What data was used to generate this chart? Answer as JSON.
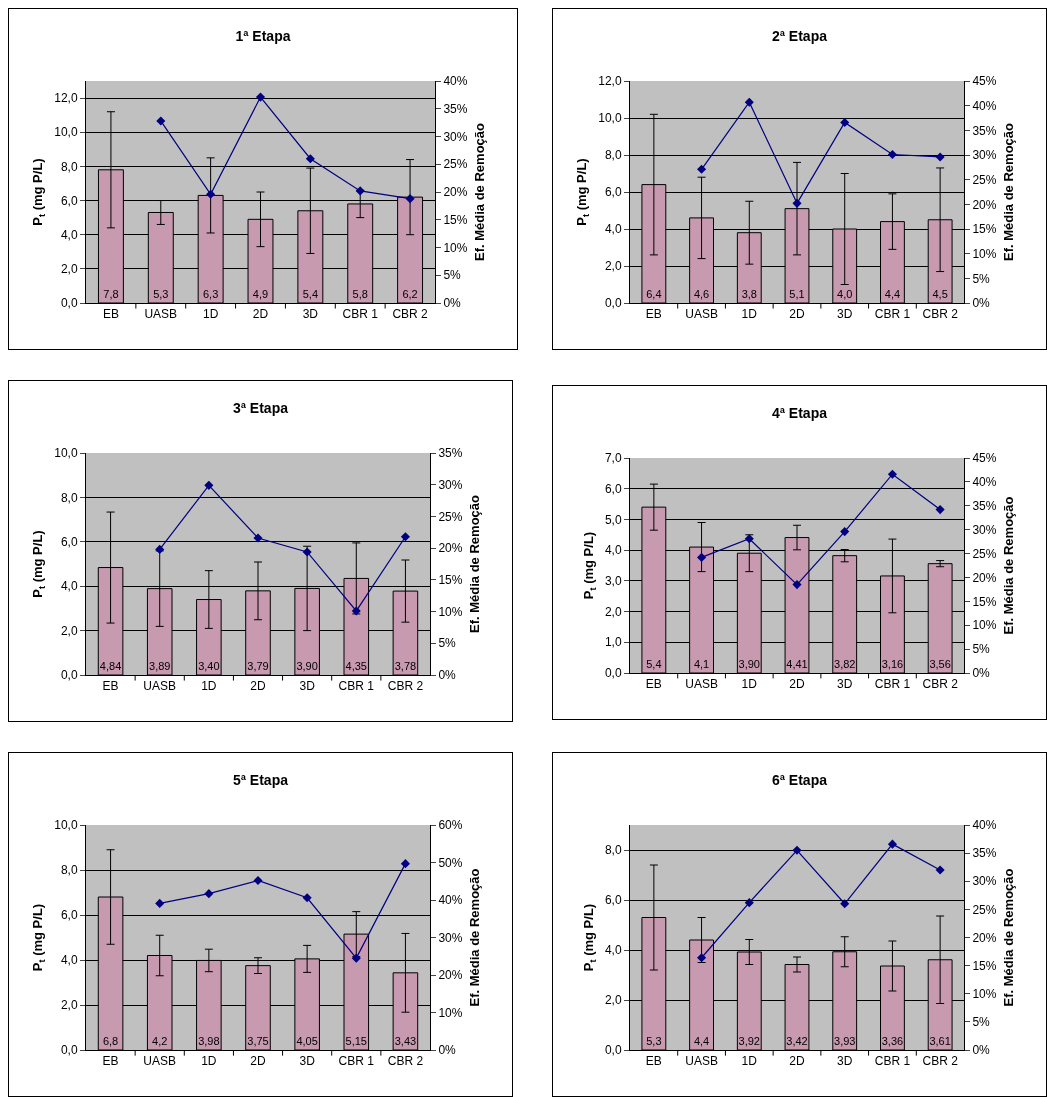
{
  "chart_data": [
    {
      "type": "bar",
      "title": "1ª Etapa",
      "ylabel": "P$_{t}$ (mg P/L)",
      "y2label": "Ef. Média de Remoção",
      "categories": [
        "EB",
        "UASB",
        "1D",
        "2D",
        "3D",
        "CBR 1",
        "CBR 2"
      ],
      "grid": "y",
      "marker": "diamond",
      "line_style": "solid",
      "ylim": [
        0,
        13
      ],
      "yticks": [
        {
          "value": 0,
          "label": "0,0"
        },
        {
          "value": 2,
          "label": "2,0"
        },
        {
          "value": 4,
          "label": "4,0"
        },
        {
          "value": 6,
          "label": "6,0"
        },
        {
          "value": 8,
          "label": "8,0"
        },
        {
          "value": 10,
          "label": "10,0"
        },
        {
          "value": 12,
          "label": "12,0"
        }
      ],
      "y2lim": [
        0,
        40
      ],
      "y2ticks": [
        {
          "value": 0,
          "label": "0%"
        },
        {
          "value": 5,
          "label": "5%"
        },
        {
          "value": 10,
          "label": "10%"
        },
        {
          "value": 15,
          "label": "15%"
        },
        {
          "value": 20,
          "label": "20%"
        },
        {
          "value": 25,
          "label": "25%"
        },
        {
          "value": 30,
          "label": "30%"
        },
        {
          "value": 35,
          "label": "35%"
        },
        {
          "value": 40,
          "label": "40%"
        }
      ],
      "series": [
        {
          "color": "#c89ab0",
          "values": [
            7.8,
            5.3,
            6.3,
            4.9,
            5.4,
            5.8,
            6.2
          ],
          "errors": [
            3.4,
            0.7,
            2.2,
            1.6,
            2.5,
            0.8,
            2.2
          ],
          "value_labels": [
            "7,8",
            "5,3",
            "6,3",
            "4,9",
            "5,4",
            "5,8",
            "6,2"
          ]
        },
        {
          "type": "line",
          "axis": "y2",
          "color": "#000080",
          "values": [
            null,
            32.8,
            19.6,
            37.1,
            26.0,
            20.2,
            18.8
          ]
        }
      ]
    },
    {
      "type": "bar",
      "title": "2ª Etapa",
      "ylabel": "P$_{t}$ (mg P/L)",
      "y2label": "Ef. Média de Remoção",
      "categories": [
        "EB",
        "UASB",
        "1D",
        "2D",
        "3D",
        "CBR 1",
        "CBR 2"
      ],
      "grid": "y",
      "marker": "diamond",
      "line_style": "solid",
      "ylim": [
        0,
        12
      ],
      "yticks": [
        {
          "value": 0,
          "label": "0,0"
        },
        {
          "value": 2,
          "label": "2,0"
        },
        {
          "value": 4,
          "label": "4,0"
        },
        {
          "value": 6,
          "label": "6,0"
        },
        {
          "value": 8,
          "label": "8,0"
        },
        {
          "value": 10,
          "label": "10,0"
        },
        {
          "value": 12,
          "label": "12,0"
        }
      ],
      "y2lim": [
        0,
        45
      ],
      "y2ticks": [
        {
          "value": 0,
          "label": "0%"
        },
        {
          "value": 5,
          "label": "5%"
        },
        {
          "value": 10,
          "label": "10%"
        },
        {
          "value": 15,
          "label": "15%"
        },
        {
          "value": 20,
          "label": "20%"
        },
        {
          "value": 25,
          "label": "25%"
        },
        {
          "value": 30,
          "label": "30%"
        },
        {
          "value": 35,
          "label": "35%"
        },
        {
          "value": 40,
          "label": "40%"
        },
        {
          "value": 45,
          "label": "45%"
        }
      ],
      "series": [
        {
          "color": "#c89ab0",
          "values": [
            6.4,
            4.6,
            3.8,
            5.1,
            4.0,
            4.4,
            4.5
          ],
          "errors": [
            3.8,
            2.2,
            1.7,
            2.5,
            3.0,
            1.5,
            2.8
          ],
          "value_labels": [
            "6,4",
            "4,6",
            "3,8",
            "5,1",
            "4,0",
            "4,4",
            "4,5"
          ]
        },
        {
          "type": "line",
          "axis": "y2",
          "color": "#000080",
          "values": [
            null,
            27.1,
            40.7,
            20.2,
            36.6,
            30.1,
            29.6
          ]
        }
      ]
    },
    {
      "type": "bar",
      "title": "3ª Etapa",
      "ylabel": "P$_{t}$ (mg P/L)",
      "y2label": "Ef. Média de Remoção",
      "categories": [
        "EB",
        "UASB",
        "1D",
        "2D",
        "3D",
        "CBR 1",
        "CBR 2"
      ],
      "grid": "y",
      "marker": "diamond",
      "line_style": "solid",
      "ylim": [
        0,
        10
      ],
      "yticks": [
        {
          "value": 0,
          "label": "0,0"
        },
        {
          "value": 2,
          "label": "2,0"
        },
        {
          "value": 4,
          "label": "4,0"
        },
        {
          "value": 6,
          "label": "6,0"
        },
        {
          "value": 8,
          "label": "8,0"
        },
        {
          "value": 10,
          "label": "10,0"
        }
      ],
      "y2lim": [
        0,
        35
      ],
      "y2ticks": [
        {
          "value": 0,
          "label": "0%"
        },
        {
          "value": 5,
          "label": "5%"
        },
        {
          "value": 10,
          "label": "10%"
        },
        {
          "value": 15,
          "label": "15%"
        },
        {
          "value": 20,
          "label": "20%"
        },
        {
          "value": 25,
          "label": "25%"
        },
        {
          "value": 30,
          "label": "30%"
        },
        {
          "value": 35,
          "label": "35%"
        }
      ],
      "series": [
        {
          "color": "#c89ab0",
          "values": [
            4.84,
            3.89,
            3.4,
            3.79,
            3.9,
            4.35,
            3.78
          ],
          "errors": [
            2.5,
            1.7,
            1.3,
            1.3,
            1.9,
            1.6,
            1.4
          ],
          "value_labels": [
            "4,84",
            "3,89",
            "3,40",
            "3,79",
            "3,90",
            "4,35",
            "3,78"
          ]
        },
        {
          "type": "line",
          "axis": "y2",
          "color": "#000080",
          "values": [
            null,
            19.8,
            29.9,
            21.6,
            19.4,
            10.1,
            21.8
          ]
        }
      ]
    },
    {
      "type": "bar",
      "title": "4ª Etapa",
      "ylabel": "P$_{t}$ (mg P/L)",
      "y2label": "Ef. Média de Remoção",
      "categories": [
        "EB",
        "UASB",
        "1D",
        "2D",
        "3D",
        "CBR 1",
        "CBR 2"
      ],
      "grid": "y",
      "marker": "diamond",
      "line_style": "solid",
      "ylim": [
        0,
        7
      ],
      "yticks": [
        {
          "value": 0,
          "label": "0,0"
        },
        {
          "value": 1,
          "label": "1,0"
        },
        {
          "value": 2,
          "label": "2,0"
        },
        {
          "value": 3,
          "label": "3,0"
        },
        {
          "value": 4,
          "label": "4,0"
        },
        {
          "value": 5,
          "label": "5,0"
        },
        {
          "value": 6,
          "label": "6,0"
        },
        {
          "value": 7,
          "label": "7,0"
        }
      ],
      "y2lim": [
        0,
        45
      ],
      "y2ticks": [
        {
          "value": 0,
          "label": "0%"
        },
        {
          "value": 5,
          "label": "5%"
        },
        {
          "value": 10,
          "label": "10%"
        },
        {
          "value": 15,
          "label": "15%"
        },
        {
          "value": 20,
          "label": "20%"
        },
        {
          "value": 25,
          "label": "25%"
        },
        {
          "value": 30,
          "label": "30%"
        },
        {
          "value": 35,
          "label": "35%"
        },
        {
          "value": 40,
          "label": "40%"
        },
        {
          "value": 45,
          "label": "45%"
        }
      ],
      "series": [
        {
          "color": "#c89ab0",
          "values": [
            5.4,
            4.1,
            3.9,
            4.41,
            3.82,
            3.16,
            3.56
          ],
          "errors": [
            0.75,
            0.8,
            0.6,
            0.4,
            0.2,
            1.2,
            0.1
          ],
          "value_labels": [
            "5,4",
            "4,1",
            "3,90",
            "4,41",
            "3,82",
            "3,16",
            "3,56"
          ]
        },
        {
          "type": "line",
          "axis": "y2",
          "color": "#000080",
          "values": [
            null,
            24.2,
            28.1,
            18.5,
            29.6,
            41.6,
            34.2
          ]
        }
      ]
    },
    {
      "type": "bar",
      "title": "5ª Etapa",
      "ylabel": "P$_{t}$ (mg P/L)",
      "y2label": "Ef. Média de Remoção",
      "categories": [
        "EB",
        "UASB",
        "1D",
        "2D",
        "3D",
        "CBR 1",
        "CBR 2"
      ],
      "grid": "y",
      "marker": "diamond",
      "line_style": "solid",
      "ylim": [
        0,
        10
      ],
      "yticks": [
        {
          "value": 0,
          "label": "0,0"
        },
        {
          "value": 2,
          "label": "2,0"
        },
        {
          "value": 4,
          "label": "4,0"
        },
        {
          "value": 6,
          "label": "6,0"
        },
        {
          "value": 8,
          "label": "8,0"
        },
        {
          "value": 10,
          "label": "10,0"
        }
      ],
      "y2lim": [
        0,
        60
      ],
      "y2ticks": [
        {
          "value": 0,
          "label": "0%"
        },
        {
          "value": 10,
          "label": "10%"
        },
        {
          "value": 20,
          "label": "20%"
        },
        {
          "value": 30,
          "label": "30%"
        },
        {
          "value": 40,
          "label": "40%"
        },
        {
          "value": 50,
          "label": "50%"
        },
        {
          "value": 60,
          "label": "60%"
        }
      ],
      "series": [
        {
          "color": "#c89ab0",
          "values": [
            6.8,
            4.2,
            3.98,
            3.75,
            4.05,
            5.15,
            3.43
          ],
          "errors": [
            2.1,
            0.9,
            0.5,
            0.35,
            0.6,
            1.0,
            1.75
          ],
          "value_labels": [
            "6,8",
            "4,2",
            "3,98",
            "3,75",
            "4,05",
            "5,15",
            "3,43"
          ]
        },
        {
          "type": "line",
          "axis": "y2",
          "color": "#000080",
          "values": [
            null,
            39.1,
            41.7,
            45.2,
            40.6,
            24.5,
            49.7
          ]
        }
      ]
    },
    {
      "type": "bar",
      "title": "6ª Etapa",
      "ylabel": "P$_{t}$ (mg P/L)",
      "y2label": "Ef. Média de Remoção",
      "categories": [
        "EB",
        "UASB",
        "1D",
        "2D",
        "3D",
        "CBR 1",
        "CBR 2"
      ],
      "grid": "y",
      "marker": "diamond",
      "line_style": "solid",
      "ylim": [
        0,
        9
      ],
      "yticks": [
        {
          "value": 0,
          "label": "0,0"
        },
        {
          "value": 2,
          "label": "2,0"
        },
        {
          "value": 4,
          "label": "4,0"
        },
        {
          "value": 6,
          "label": "6,0"
        },
        {
          "value": 8,
          "label": "8,0"
        }
      ],
      "y2lim": [
        0,
        40
      ],
      "y2ticks": [
        {
          "value": 0,
          "label": "0%"
        },
        {
          "value": 5,
          "label": "5%"
        },
        {
          "value": 10,
          "label": "10%"
        },
        {
          "value": 15,
          "label": "15%"
        },
        {
          "value": 20,
          "label": "20%"
        },
        {
          "value": 25,
          "label": "25%"
        },
        {
          "value": 30,
          "label": "30%"
        },
        {
          "value": 35,
          "label": "35%"
        },
        {
          "value": 40,
          "label": "40%"
        }
      ],
      "series": [
        {
          "color": "#c89ab0",
          "values": [
            5.3,
            4.4,
            3.92,
            3.42,
            3.93,
            3.36,
            3.61
          ],
          "errors": [
            2.1,
            0.9,
            0.5,
            0.3,
            0.6,
            1.0,
            1.75
          ],
          "value_labels": [
            "5,3",
            "4,4",
            "3,92",
            "3,42",
            "3,93",
            "3,36",
            "3,61"
          ]
        },
        {
          "type": "line",
          "axis": "y2",
          "color": "#000080",
          "values": [
            null,
            16.4,
            26.2,
            35.5,
            26.0,
            36.6,
            32.0
          ]
        }
      ]
    }
  ]
}
